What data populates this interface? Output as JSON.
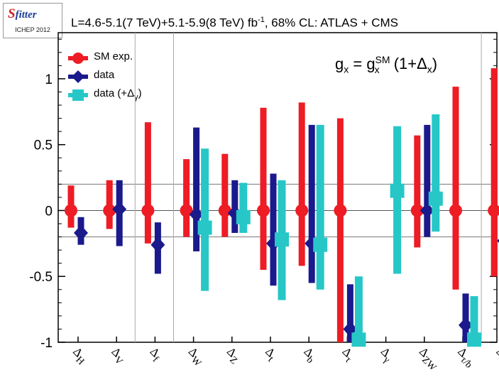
{
  "logo": {
    "name": "SFitter",
    "event": "ICHEP 2012"
  },
  "title": {
    "prefix": "L=4.6-5.1(7 TeV)+5.1-5.9(8 TeV) fb",
    "sup": "-1",
    "suffix": ", 68% CL: ATLAS + CMS"
  },
  "formula": {
    "lhs": "g",
    "lhs_sub": "x",
    "eq": " = ",
    "rhs": "g",
    "rhs_sup": "SM",
    "rhs_sub": "x",
    "tail": " (1+Δ",
    "tail_sub": "x",
    "tail_end": ")"
  },
  "legend": [
    {
      "label": "SM exp.",
      "label_sub": ""
    },
    {
      "label": "data",
      "label_sub": ""
    },
    {
      "label": "data (+Δ",
      "label_sub": "γ",
      "label_end": ")"
    }
  ],
  "colors": {
    "sm": "#ee1c24",
    "data": "#1a1a8c",
    "data_gamma": "#27c7c7",
    "grid": "#777777",
    "separator": "#aaaaaa"
  },
  "chart_data": {
    "type": "scatter",
    "subtype": "error-bar",
    "title": "L=4.6-5.1(7 TeV)+5.1-5.9(8 TeV) fb-1, 68% CL: ATLAS + CMS",
    "ylim": [
      -1,
      1.35
    ],
    "yticks": [
      -1,
      -0.5,
      0,
      0.5,
      1
    ],
    "ytick_labels": [
      "-1",
      "-0.5",
      "0",
      "0.5",
      "1"
    ],
    "hlines": [
      0.2,
      0,
      -0.2
    ],
    "group_separators_after": [
      1,
      2,
      10
    ],
    "categories": [
      "ΔH",
      "ΔV",
      "Δf",
      "ΔW",
      "ΔZ",
      "Δt",
      "Δb",
      "Δτ",
      "Δγ",
      "ΔZW",
      "Δτ/b",
      "Δb/W"
    ],
    "category_labels": [
      {
        "base": "Δ",
        "sub": "H"
      },
      {
        "base": "Δ",
        "sub": "V"
      },
      {
        "base": "Δ",
        "sub": "f"
      },
      {
        "base": "Δ",
        "sub": "W"
      },
      {
        "base": "Δ",
        "sub": "Z"
      },
      {
        "base": "Δ",
        "sub": "t"
      },
      {
        "base": "Δ",
        "sub": "b"
      },
      {
        "base": "Δ",
        "sub": "τ"
      },
      {
        "base": "Δ",
        "sub": "γ"
      },
      {
        "base": "Δ",
        "sub": "ZW"
      },
      {
        "base": "Δ",
        "sub": "τ/b"
      },
      {
        "base": "Δ",
        "sub": "b/W"
      }
    ],
    "series": [
      {
        "name": "SM exp.",
        "marker": "circle",
        "points": [
          {
            "cat": 0,
            "y": 0,
            "lo": -0.13,
            "hi": 0.19
          },
          {
            "cat": 1,
            "y": 0,
            "lo": -0.14,
            "hi": 0.23
          },
          {
            "cat": 2,
            "y": 0,
            "lo": -0.25,
            "hi": 0.67
          },
          {
            "cat": 3,
            "y": 0,
            "lo": -0.2,
            "hi": 0.39
          },
          {
            "cat": 4,
            "y": 0,
            "lo": -0.2,
            "hi": 0.43
          },
          {
            "cat": 5,
            "y": 0,
            "lo": -0.45,
            "hi": 0.78
          },
          {
            "cat": 6,
            "y": 0,
            "lo": -0.42,
            "hi": 0.82
          },
          {
            "cat": 7,
            "y": 0,
            "lo": -1.0,
            "hi": 0.7
          },
          {
            "cat": 9,
            "y": 0,
            "lo": -0.28,
            "hi": 0.57
          },
          {
            "cat": 10,
            "y": 0,
            "lo": -0.6,
            "hi": 0.94
          },
          {
            "cat": 11,
            "y": 0,
            "lo": -0.5,
            "hi": 1.08
          }
        ]
      },
      {
        "name": "data",
        "marker": "diamond",
        "points": [
          {
            "cat": 0,
            "y": -0.17,
            "lo": -0.26,
            "hi": -0.05
          },
          {
            "cat": 1,
            "y": 0.01,
            "lo": -0.27,
            "hi": 0.23
          },
          {
            "cat": 2,
            "y": -0.26,
            "lo": -0.48,
            "hi": -0.09
          },
          {
            "cat": 3,
            "y": -0.03,
            "lo": -0.31,
            "hi": 0.63
          },
          {
            "cat": 4,
            "y": -0.02,
            "lo": -0.17,
            "hi": 0.23
          },
          {
            "cat": 5,
            "y": -0.25,
            "lo": -0.57,
            "hi": 0.28
          },
          {
            "cat": 6,
            "y": -0.25,
            "lo": -0.55,
            "hi": 0.65
          },
          {
            "cat": 7,
            "y": -0.9,
            "lo": -1.0,
            "hi": -0.56
          },
          {
            "cat": 9,
            "y": 0.0,
            "lo": -0.2,
            "hi": 0.65
          },
          {
            "cat": 10,
            "y": -0.87,
            "lo": -1.0,
            "hi": -0.63
          },
          {
            "cat": 11,
            "y": -0.23,
            "lo": -0.57,
            "hi": 0.69
          }
        ]
      },
      {
        "name": "data (+Δγ)",
        "marker": "square",
        "points": [
          {
            "cat": 3,
            "y": -0.13,
            "lo": -0.61,
            "hi": 0.47
          },
          {
            "cat": 4,
            "y": -0.05,
            "lo": -0.17,
            "hi": 0.21
          },
          {
            "cat": 5,
            "y": -0.22,
            "lo": -0.68,
            "hi": 0.23
          },
          {
            "cat": 6,
            "y": -0.26,
            "lo": -0.6,
            "hi": 0.65
          },
          {
            "cat": 7,
            "y": -0.98,
            "lo": -1.0,
            "hi": -0.5
          },
          {
            "cat": 8,
            "y": 0.15,
            "lo": -0.48,
            "hi": 0.64
          },
          {
            "cat": 9,
            "y": 0.09,
            "lo": -0.16,
            "hi": 0.73
          },
          {
            "cat": 10,
            "y": -0.98,
            "lo": -1.0,
            "hi": -0.65
          },
          {
            "cat": 11,
            "y": -0.16,
            "lo": -0.54,
            "hi": 0.67
          }
        ]
      }
    ]
  }
}
